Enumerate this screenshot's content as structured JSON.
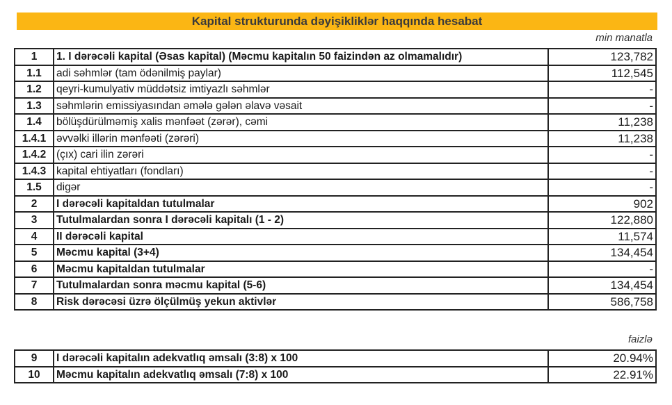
{
  "title": "Kapital strukturunda dəyişikliklər haqqında hesabat",
  "unit1": "min manatla",
  "rows": [
    {
      "n": "1",
      "label": "1. I dərəcəli kapital (Əsas kapital) (Məcmu kapitalın 50 faizindən az olmamalıdır)",
      "value": "123,782",
      "bold": true
    },
    {
      "n": "1.1",
      "label": "adi səhmlər (tam ödənilmiş paylar)",
      "value": "112,545",
      "bold": false
    },
    {
      "n": "1.2",
      "label": "qeyri-kumulyativ müddətsiz imtiyazlı səhmlər",
      "value": "-",
      "bold": false
    },
    {
      "n": "1.3",
      "label": "səhmlərin emissiyasından əmələ gələn əlavə vəsait",
      "value": "-",
      "bold": false
    },
    {
      "n": "1.4",
      "label": "bölüşdürülməmiş xalis mənfəət (zərər), cəmi",
      "value": "11,238",
      "bold": false
    },
    {
      "n": "1.4.1",
      "label": "əvvəlki illərin mənfəəti (zərəri)",
      "value": "11,238",
      "bold": false
    },
    {
      "n": "1.4.2",
      "label": "(çıx) cari ilin zərəri",
      "value": "-",
      "bold": false
    },
    {
      "n": "1.4.3",
      "label": "kapital ehtiyatları (fondları)",
      "value": "-",
      "bold": false
    },
    {
      "n": "1.5",
      "label": "digər",
      "value": "-",
      "bold": false
    },
    {
      "n": "2",
      "label": "I dərəcəli kapitaldan tutulmalar",
      "value": "902",
      "bold": true
    },
    {
      "n": "3",
      "label": "Tutulmalardan sonra I dərəcəli kapitalı (1 - 2)",
      "value": "122,880",
      "bold": true
    },
    {
      "n": "4",
      "label": "II dərəcəli kapital",
      "value": "11,574",
      "bold": true
    },
    {
      "n": "5",
      "label": "Məcmu kapital (3+4)",
      "value": "134,454",
      "bold": true
    },
    {
      "n": "6",
      "label": "Məcmu kapitaldan tutulmalar",
      "value": "-",
      "bold": true
    },
    {
      "n": "7",
      "label": "Tutulmalardan sonra məcmu kapital (5-6)",
      "value": "134,454",
      "bold": true
    },
    {
      "n": "8",
      "label": "Risk dərəcəsi üzrə ölçülmüş yekun aktivlər",
      "value": "586,758",
      "bold": true
    }
  ],
  "unit2": "faizlə",
  "ratios": [
    {
      "n": "9",
      "label": "I dərəcəli kapitalın adekvatlıq əmsalı (3:8) x 100",
      "value": "20.94%",
      "bold": true
    },
    {
      "n": "10",
      "label": "Məcmu kapitalın adekvatlıq əmsalı (7:8) x 100",
      "value": "22.91%",
      "bold": true
    }
  ],
  "colors": {
    "banner": "#fbb614"
  }
}
